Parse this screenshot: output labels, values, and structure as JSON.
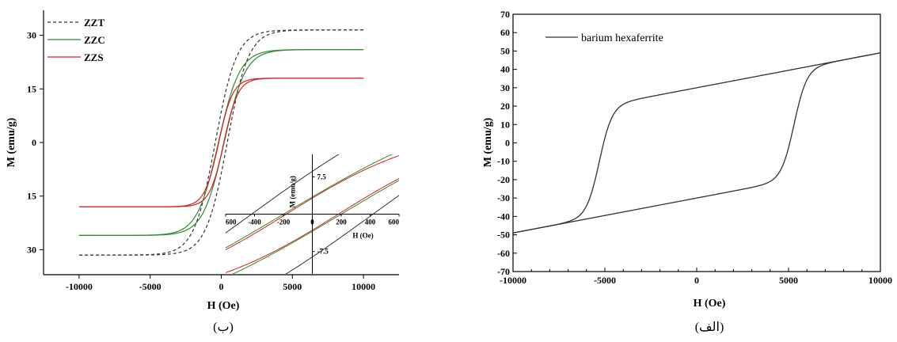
{
  "chart_data": [
    {
      "type": "line",
      "caption": "(ب)",
      "xlabel": "H (Oe)",
      "ylabel": "M (emu/g)",
      "xlim": [
        -12500,
        12500
      ],
      "ylim": [
        -37,
        37
      ],
      "xticks": [
        -10000,
        -5000,
        0,
        5000,
        10000
      ],
      "xtick_labels": [
        "-10000",
        "-5000",
        "0",
        "5000",
        "10000"
      ],
      "yticks": [
        30,
        15,
        0,
        -15,
        -30
      ],
      "ytick_labels": [
        "30",
        "15",
        "0",
        "15",
        "30"
      ],
      "legend_position": "top-left",
      "series": [
        {
          "name": "ZZT",
          "color": "#333333",
          "dash": "dashed",
          "Ms": 31.5,
          "Hc": 420,
          "w": 1500
        },
        {
          "name": "ZZC",
          "color": "#2e8b2e",
          "dash": "solid",
          "Ms": 26.0,
          "Hc": 200,
          "w": 1500
        },
        {
          "name": "ZZS",
          "color": "#d62020",
          "dash": "solid",
          "Ms": 18.0,
          "Hc": 180,
          "w": 1000
        }
      ],
      "inset": {
        "xlabel": "H (Oe)",
        "ylabel": "M (emu/g)",
        "xlim": [
          -600,
          600
        ],
        "ylim": [
          -12,
          12
        ],
        "xtick_labels": [
          "600",
          "-400",
          "-200",
          "0",
          "200",
          "400",
          "600"
        ],
        "ytick_labels": [
          "7.5",
          "0",
          "-7.5"
        ]
      }
    },
    {
      "type": "line",
      "caption": "(الف)",
      "xlabel": "H (Oe)",
      "ylabel": "M (emu/g)",
      "xlim": [
        -10000,
        10000
      ],
      "ylim": [
        -70,
        70
      ],
      "xticks": [
        -10000,
        -5000,
        0,
        5000,
        10000
      ],
      "xtick_labels": [
        "-10000",
        "-5000",
        "0",
        "5000",
        "10000"
      ],
      "yticks": [
        70,
        60,
        50,
        40,
        30,
        20,
        10,
        0,
        -10,
        -20,
        -30,
        -40,
        -50,
        -60,
        -70
      ],
      "ytick_labels": [
        "70",
        "60",
        "50",
        "40",
        "30",
        "20",
        "10",
        "0",
        "-10",
        "-20",
        "-30",
        "-40",
        "-50",
        "-60",
        "-70"
      ],
      "legend_position": "top-left",
      "series": [
        {
          "name": "barium hexaferrite",
          "color": "#333333",
          "Ms": 49,
          "Mr": 30,
          "Hc": 5300
        }
      ]
    }
  ]
}
